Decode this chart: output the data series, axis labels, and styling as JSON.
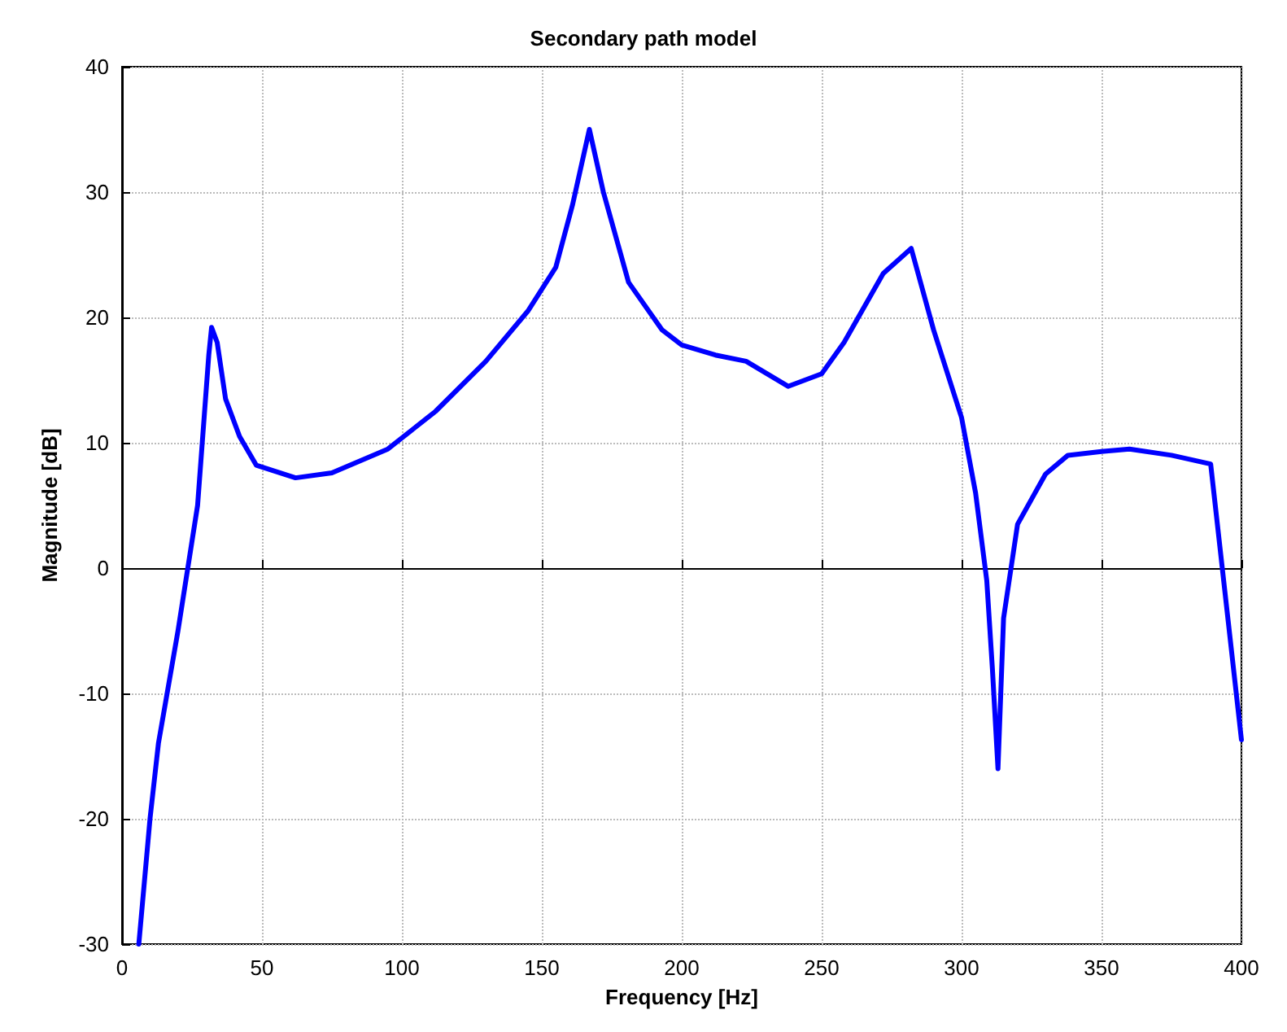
{
  "chart_data": {
    "type": "line",
    "title": "Secondary path model",
    "xlabel": "Frequency [Hz]",
    "ylabel": "Magnitude [dB]",
    "x": [
      6,
      10,
      13,
      20,
      27,
      31,
      32,
      34,
      37,
      42,
      48,
      62,
      75,
      95,
      112,
      130,
      145,
      155,
      161,
      167,
      172,
      181,
      193,
      200,
      212,
      223,
      238,
      250,
      258,
      272,
      282,
      290,
      300,
      305,
      309,
      311,
      313,
      315,
      320,
      330,
      338,
      350,
      360,
      375,
      389,
      400
    ],
    "series": [
      {
        "color": "#0000ff",
        "values": [
          -30,
          -20,
          -14,
          -5,
          5,
          17,
          19.2,
          18,
          13.5,
          10.5,
          8.2,
          7.2,
          7.6,
          9.5,
          12.5,
          16.5,
          20.5,
          24,
          29,
          35,
          30,
          22.8,
          19,
          17.8,
          17,
          16.5,
          14.5,
          15.5,
          18,
          23.5,
          25.5,
          19,
          12,
          6,
          -1,
          -8,
          -16,
          -4,
          3.5,
          7.5,
          9,
          9.3,
          9.5,
          9,
          8.3,
          -13.7
        ]
      }
    ],
    "xlim": [
      0,
      400
    ],
    "xticks": [
      0,
      50,
      100,
      150,
      200,
      250,
      300,
      350,
      400
    ],
    "ylim": [
      -30,
      40
    ],
    "yticks": [
      -30,
      -20,
      -10,
      0,
      10,
      20,
      30,
      40
    ],
    "grid": true,
    "marker": "none",
    "line_style": "solid"
  }
}
